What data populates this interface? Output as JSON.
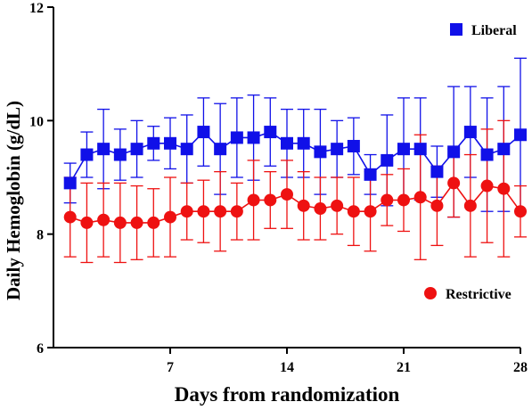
{
  "chart_data": {
    "type": "line",
    "xlabel": "Days from randomization",
    "ylabel": "Daily Hemoglobin (g/dL)",
    "xlim": [
      0,
      28
    ],
    "ylim": [
      6,
      12
    ],
    "xticks": [
      7,
      14,
      21,
      28
    ],
    "yticks": [
      6,
      8,
      10,
      12
    ],
    "legend_placement": "series-labeled",
    "series": [
      {
        "name": "Liberal",
        "color": "#1010e8",
        "marker": "square",
        "legend_position": "top-right",
        "points": [
          {
            "x": 1,
            "y": 8.9,
            "err": 0.35
          },
          {
            "x": 2,
            "y": 9.4,
            "err": 0.4
          },
          {
            "x": 3,
            "y": 9.5,
            "err": 0.7
          },
          {
            "x": 4,
            "y": 9.4,
            "err": 0.45
          },
          {
            "x": 5,
            "y": 9.5,
            "err": 0.5
          },
          {
            "x": 6,
            "y": 9.6,
            "err": 0.3
          },
          {
            "x": 7,
            "y": 9.6,
            "err": 0.45
          },
          {
            "x": 8,
            "y": 9.5,
            "err": 0.6
          },
          {
            "x": 9,
            "y": 9.8,
            "err": 0.6
          },
          {
            "x": 10,
            "y": 9.5,
            "err": 0.8
          },
          {
            "x": 11,
            "y": 9.7,
            "err": 0.7
          },
          {
            "x": 12,
            "y": 9.7,
            "err": 0.75
          },
          {
            "x": 13,
            "y": 9.8,
            "err": 0.6
          },
          {
            "x": 14,
            "y": 9.6,
            "err": 0.6
          },
          {
            "x": 15,
            "y": 9.6,
            "err": 0.6
          },
          {
            "x": 16,
            "y": 9.45,
            "err": 0.75
          },
          {
            "x": 17,
            "y": 9.5,
            "err": 0.5
          },
          {
            "x": 18,
            "y": 9.55,
            "err": 0.5
          },
          {
            "x": 19,
            "y": 9.05,
            "err": 0.35
          },
          {
            "x": 20,
            "y": 9.3,
            "err": 0.8
          },
          {
            "x": 21,
            "y": 9.5,
            "err": 0.9
          },
          {
            "x": 22,
            "y": 9.5,
            "err": 0.9
          },
          {
            "x": 23,
            "y": 9.1,
            "err": 0.45
          },
          {
            "x": 24,
            "y": 9.45,
            "err": 1.15
          },
          {
            "x": 25,
            "y": 9.8,
            "err": 0.8
          },
          {
            "x": 26,
            "y": 9.4,
            "err": 1.0
          },
          {
            "x": 27,
            "y": 9.5,
            "err": 1.1
          },
          {
            "x": 28,
            "y": 9.75,
            "err": 1.35
          }
        ]
      },
      {
        "name": "Restrictive",
        "color": "#ee1111",
        "marker": "circle",
        "legend_position": "bottom-right",
        "points": [
          {
            "x": 1,
            "y": 8.3,
            "err": 0.7
          },
          {
            "x": 2,
            "y": 8.2,
            "err": 0.7
          },
          {
            "x": 3,
            "y": 8.25,
            "err": 0.65
          },
          {
            "x": 4,
            "y": 8.2,
            "err": 0.7
          },
          {
            "x": 5,
            "y": 8.2,
            "err": 0.65
          },
          {
            "x": 6,
            "y": 8.2,
            "err": 0.6
          },
          {
            "x": 7,
            "y": 8.3,
            "err": 0.7
          },
          {
            "x": 8,
            "y": 8.4,
            "err": 0.5
          },
          {
            "x": 9,
            "y": 8.4,
            "err": 0.55
          },
          {
            "x": 10,
            "y": 8.4,
            "err": 0.7
          },
          {
            "x": 11,
            "y": 8.4,
            "err": 0.5
          },
          {
            "x": 12,
            "y": 8.6,
            "err": 0.7
          },
          {
            "x": 13,
            "y": 8.6,
            "err": 0.5
          },
          {
            "x": 14,
            "y": 8.7,
            "err": 0.6
          },
          {
            "x": 15,
            "y": 8.5,
            "err": 0.6
          },
          {
            "x": 16,
            "y": 8.45,
            "err": 0.55
          },
          {
            "x": 17,
            "y": 8.5,
            "err": 0.5
          },
          {
            "x": 18,
            "y": 8.4,
            "err": 0.6
          },
          {
            "x": 19,
            "y": 8.4,
            "err": 0.7
          },
          {
            "x": 20,
            "y": 8.6,
            "err": 0.45
          },
          {
            "x": 21,
            "y": 8.6,
            "err": 0.55
          },
          {
            "x": 22,
            "y": 8.65,
            "err": 1.1
          },
          {
            "x": 23,
            "y": 8.5,
            "err": 0.7
          },
          {
            "x": 24,
            "y": 8.9,
            "err": 0.6
          },
          {
            "x": 25,
            "y": 8.5,
            "err": 0.9
          },
          {
            "x": 26,
            "y": 8.85,
            "err": 1.0
          },
          {
            "x": 27,
            "y": 8.8,
            "err": 1.2
          },
          {
            "x": 28,
            "y": 8.4,
            "err": 0.45
          }
        ]
      }
    ]
  }
}
